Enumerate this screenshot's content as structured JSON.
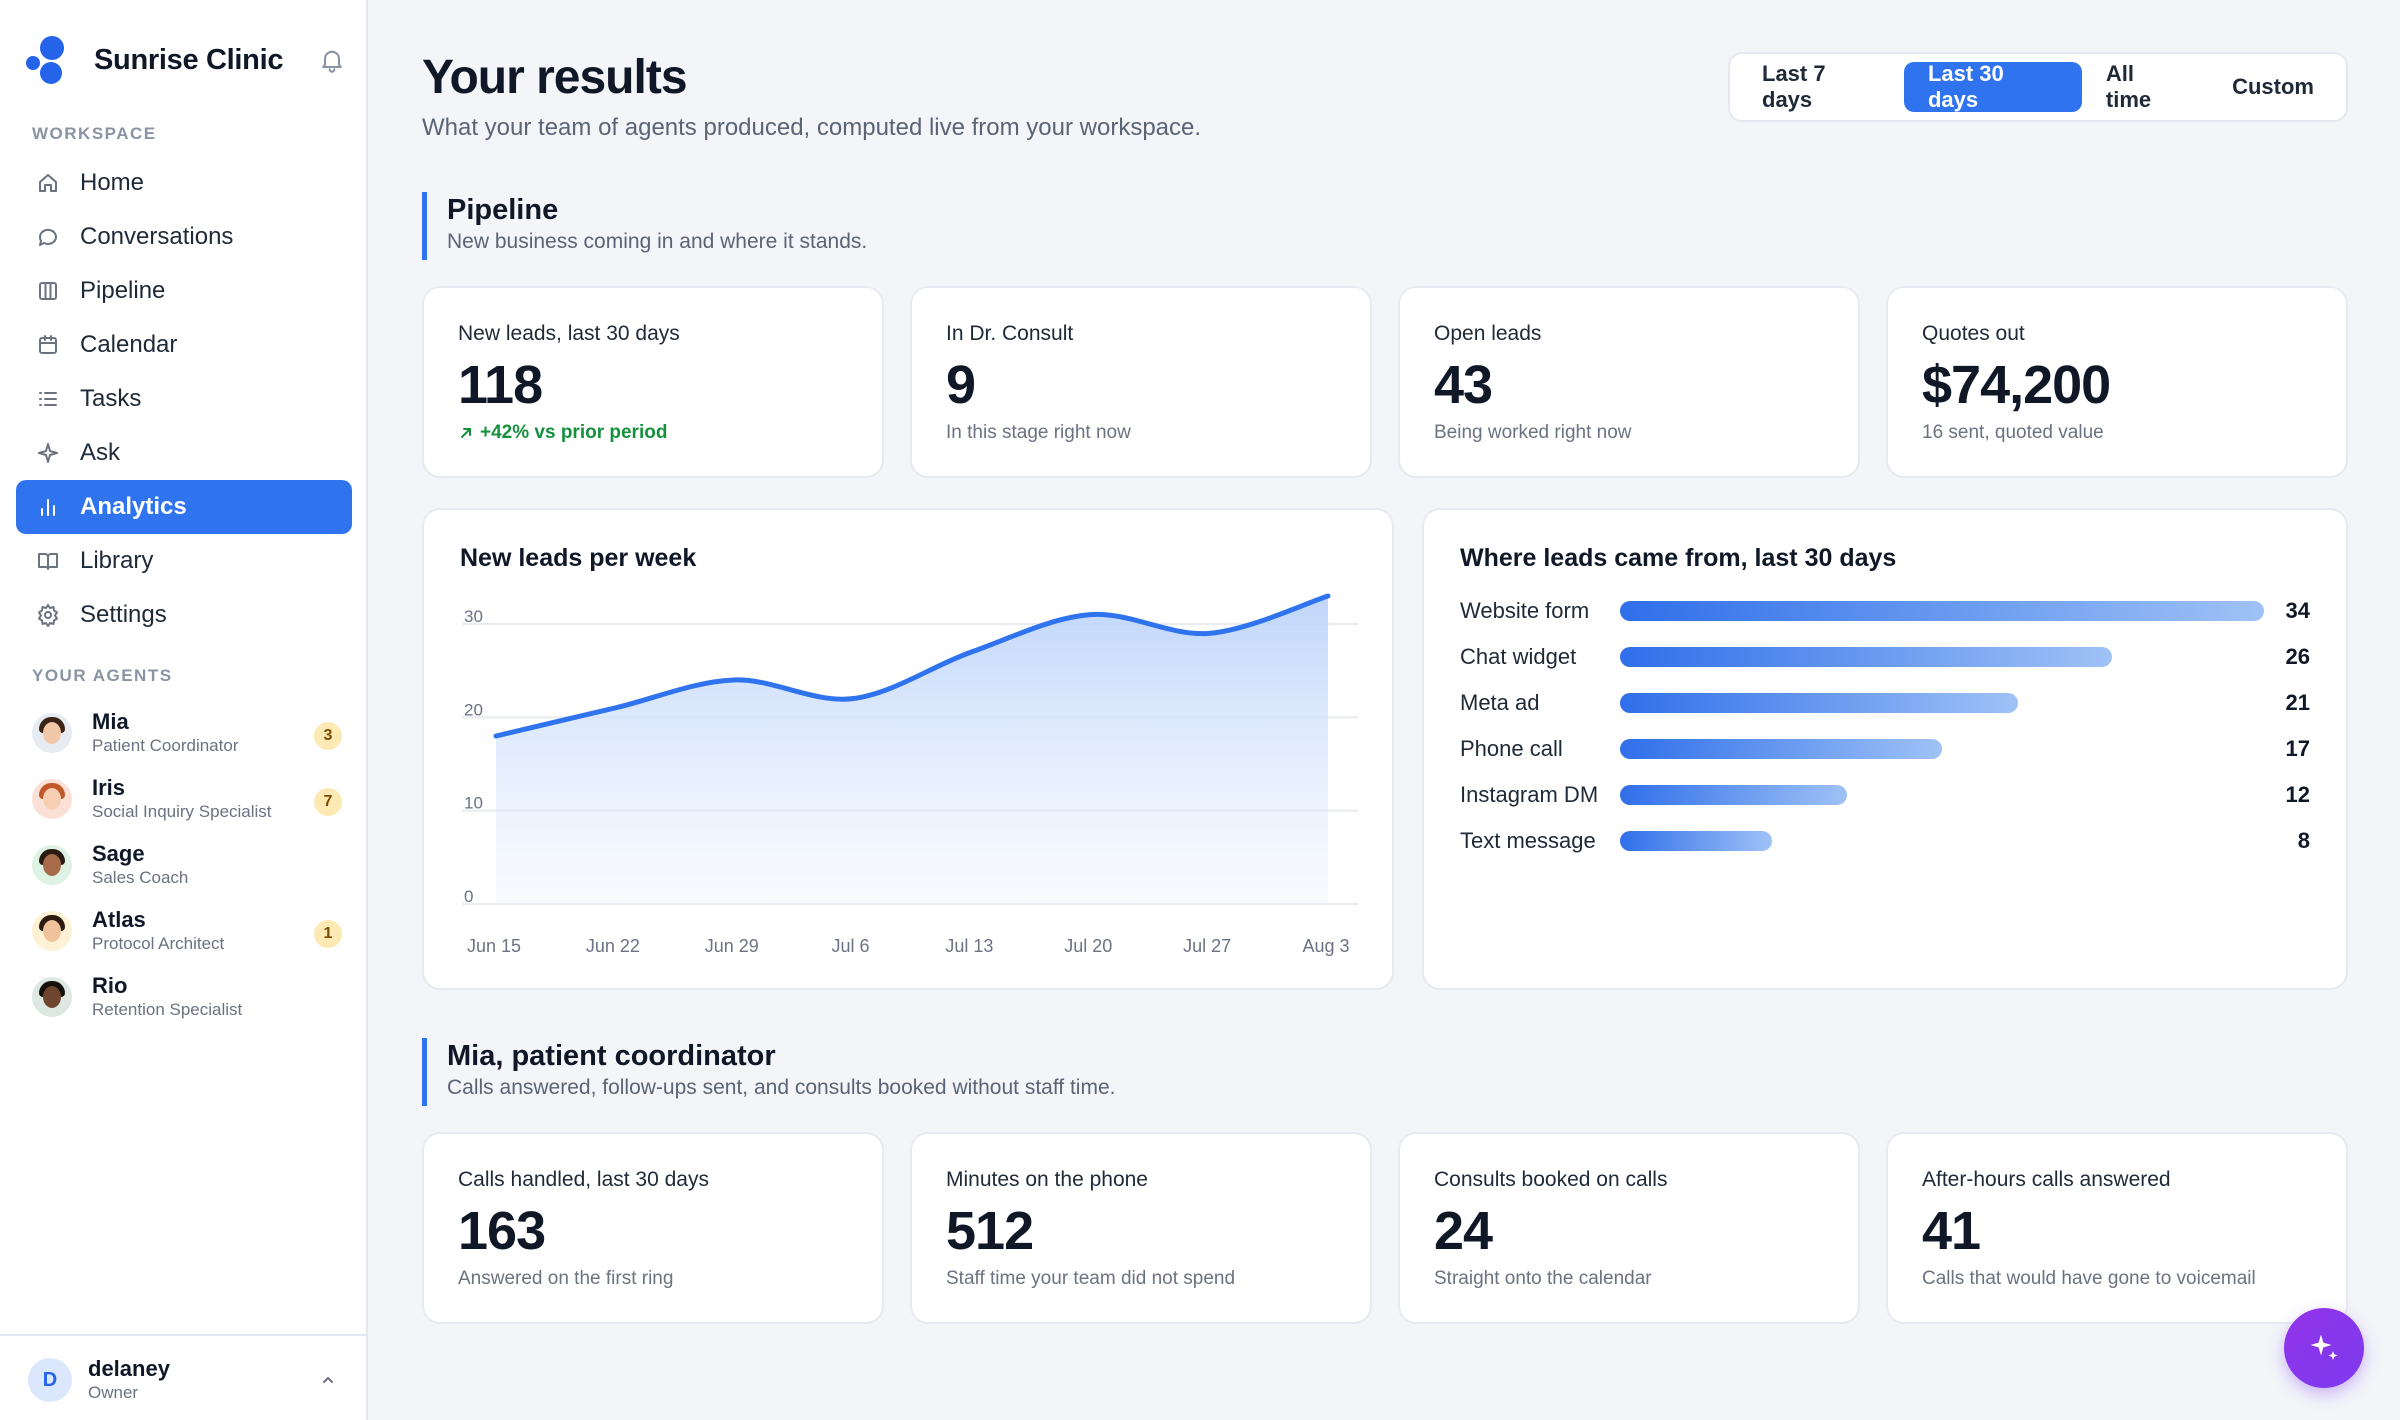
{
  "brand": {
    "name": "Sunrise Clinic"
  },
  "sidebar": {
    "workspace_label": "WORKSPACE",
    "items": [
      {
        "label": "Home",
        "icon": "home-icon"
      },
      {
        "label": "Conversations",
        "icon": "chat-bubble-icon"
      },
      {
        "label": "Pipeline",
        "icon": "columns-icon"
      },
      {
        "label": "Calendar",
        "icon": "calendar-icon"
      },
      {
        "label": "Tasks",
        "icon": "list-icon"
      },
      {
        "label": "Ask",
        "icon": "sparkle-icon"
      },
      {
        "label": "Analytics",
        "icon": "bar-chart-icon",
        "active": true
      },
      {
        "label": "Library",
        "icon": "book-icon"
      },
      {
        "label": "Settings",
        "icon": "gear-icon"
      }
    ],
    "agents_label": "YOUR AGENTS",
    "agents": [
      {
        "name": "Mia",
        "role": "Patient Coordinator",
        "badge": "3"
      },
      {
        "name": "Iris",
        "role": "Social Inquiry Specialist",
        "badge": "7"
      },
      {
        "name": "Sage",
        "role": "Sales Coach",
        "badge": ""
      },
      {
        "name": "Atlas",
        "role": "Protocol Architect",
        "badge": "1"
      },
      {
        "name": "Rio",
        "role": "Retention Specialist",
        "badge": ""
      }
    ],
    "user": {
      "initial": "D",
      "name": "delaney",
      "role": "Owner"
    }
  },
  "header": {
    "title": "Your results",
    "subtitle": "What your team of agents produced, computed live from your workspace.",
    "ranges": [
      "Last 7 days",
      "Last 30 days",
      "All time",
      "Custom"
    ],
    "active_range": "Last 30 days"
  },
  "pipeline": {
    "title": "Pipeline",
    "subtitle": "New business coming in and where it stands.",
    "stats": [
      {
        "label": "New leads, last 30 days",
        "value": "118",
        "sub": "+42% vs prior period",
        "trend": "up"
      },
      {
        "label": "In Dr. Consult",
        "value": "9",
        "sub": "In this stage right now"
      },
      {
        "label": "Open leads",
        "value": "43",
        "sub": "Being worked right now"
      },
      {
        "label": "Quotes out",
        "value": "$74,200",
        "sub": "16 sent, quoted value"
      }
    ]
  },
  "chart_data": [
    {
      "type": "area",
      "title": "New leads per week",
      "x": [
        "Jun 15",
        "Jun 22",
        "Jun 29",
        "Jul 6",
        "Jul 13",
        "Jul 20",
        "Jul 27",
        "Aug 3"
      ],
      "values": [
        18,
        21,
        24,
        22,
        27,
        31,
        29,
        33
      ],
      "ylim": [
        0,
        30
      ],
      "yticks": [
        "0",
        "10",
        "20",
        "30"
      ],
      "grid": true,
      "colors": {
        "line": "#2f74ee",
        "fill": "#bcd3fa"
      }
    },
    {
      "type": "bar",
      "orientation": "horizontal",
      "title": "Where leads came from, last 30 days",
      "categories": [
        "Website form",
        "Chat widget",
        "Meta ad",
        "Phone call",
        "Instagram DM",
        "Text message"
      ],
      "values": [
        34,
        26,
        21,
        17,
        12,
        8
      ],
      "colors": {
        "bar_start": "#2f6fea",
        "bar_end": "#9fc2f6"
      }
    }
  ],
  "mia": {
    "title": "Mia, patient coordinator",
    "subtitle": "Calls answered, follow-ups sent, and consults booked without staff time.",
    "stats": [
      {
        "label": "Calls handled, last 30 days",
        "value": "163",
        "sub": "Answered on the first ring"
      },
      {
        "label": "Minutes on the phone",
        "value": "512",
        "sub": "Staff time your team did not spend"
      },
      {
        "label": "Consults booked on calls",
        "value": "24",
        "sub": "Straight onto the calendar"
      },
      {
        "label": "After-hours calls answered",
        "value": "41",
        "sub": "Calls that would have gone to voicemail"
      }
    ]
  },
  "colors": {
    "accent": "#2f74ee",
    "positive": "#15913d",
    "fab": "#7c3aed",
    "badge": "#fde9b3"
  }
}
